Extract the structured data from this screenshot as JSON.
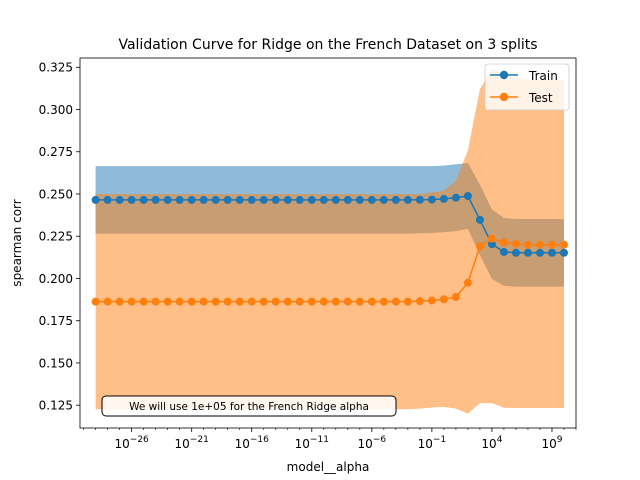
{
  "chart_data": {
    "type": "line",
    "title": "Validation Curve for Ridge on the French Dataset on 3 splits",
    "xlabel": "model__alpha",
    "ylabel": "spearman corr",
    "x_scale": "log",
    "xlim_exp": [
      -30.3,
      11.0
    ],
    "ylim": [
      0.1115,
      0.3305
    ],
    "y_ticks": [
      "0.125",
      "0.150",
      "0.175",
      "0.200",
      "0.225",
      "0.250",
      "0.275",
      "0.300",
      "0.325"
    ],
    "x_tick_exponents": [
      -26,
      -21,
      -16,
      -11,
      -6,
      -1,
      4,
      9
    ],
    "legend_position": "top-right",
    "grid": false,
    "alpha_exponents": [
      -29,
      -28,
      -27,
      -26,
      -25,
      -24,
      -23,
      -22,
      -21,
      -20,
      -19,
      -18,
      -17,
      -16,
      -15,
      -14,
      -13,
      -12,
      -11,
      -10,
      -9,
      -8,
      -7,
      -6,
      -5,
      -4,
      -3,
      -2,
      -1,
      0,
      1,
      2,
      3,
      4,
      5,
      6,
      7,
      8,
      9,
      10
    ],
    "series": [
      {
        "name": "Train",
        "color": "#1f77b4",
        "fill_color": "#1f77b4",
        "mean": [
          0.2465,
          0.2465,
          0.2465,
          0.2465,
          0.2465,
          0.2465,
          0.2465,
          0.2465,
          0.2465,
          0.2465,
          0.2465,
          0.2465,
          0.2465,
          0.2465,
          0.2465,
          0.2465,
          0.2465,
          0.2465,
          0.2465,
          0.2465,
          0.2465,
          0.2465,
          0.2465,
          0.2465,
          0.2465,
          0.2465,
          0.2465,
          0.2466,
          0.2467,
          0.2471,
          0.2478,
          0.2488,
          0.2347,
          0.2203,
          0.2157,
          0.2152,
          0.2152,
          0.2152,
          0.2152,
          0.2152
        ],
        "upper": [
          0.2665,
          0.2665,
          0.2665,
          0.2665,
          0.2665,
          0.2665,
          0.2665,
          0.2665,
          0.2665,
          0.2665,
          0.2665,
          0.2665,
          0.2665,
          0.2665,
          0.2665,
          0.2665,
          0.2665,
          0.2665,
          0.2665,
          0.2665,
          0.2665,
          0.2665,
          0.2665,
          0.2665,
          0.2665,
          0.2665,
          0.2665,
          0.2665,
          0.2665,
          0.2668,
          0.2676,
          0.2683,
          0.2556,
          0.2408,
          0.2358,
          0.2352,
          0.2352,
          0.2352,
          0.2352,
          0.2352
        ],
        "lower": [
          0.2265,
          0.2265,
          0.2265,
          0.2265,
          0.2265,
          0.2265,
          0.2265,
          0.2265,
          0.2265,
          0.2265,
          0.2265,
          0.2265,
          0.2265,
          0.2265,
          0.2265,
          0.2265,
          0.2265,
          0.2265,
          0.2265,
          0.2265,
          0.2265,
          0.2265,
          0.2265,
          0.2265,
          0.2265,
          0.2265,
          0.2265,
          0.2267,
          0.2269,
          0.2274,
          0.228,
          0.2293,
          0.2138,
          0.1998,
          0.1956,
          0.1952,
          0.1952,
          0.1952,
          0.1952,
          0.1952
        ]
      },
      {
        "name": "Test",
        "color": "#ff7f0e",
        "fill_color": "#ff7f0e",
        "mean": [
          0.1863,
          0.1863,
          0.1863,
          0.1863,
          0.1863,
          0.1863,
          0.1863,
          0.1863,
          0.1863,
          0.1863,
          0.1863,
          0.1863,
          0.1863,
          0.1863,
          0.1863,
          0.1863,
          0.1863,
          0.1863,
          0.1863,
          0.1863,
          0.1863,
          0.1863,
          0.1863,
          0.1863,
          0.1863,
          0.1863,
          0.1863,
          0.1866,
          0.187,
          0.1877,
          0.189,
          0.1975,
          0.219,
          0.2236,
          0.2215,
          0.2205,
          0.22,
          0.22,
          0.22,
          0.22
        ],
        "upper": [
          0.25,
          0.25,
          0.25,
          0.25,
          0.25,
          0.25,
          0.25,
          0.25,
          0.25,
          0.25,
          0.25,
          0.25,
          0.25,
          0.25,
          0.25,
          0.25,
          0.25,
          0.25,
          0.25,
          0.25,
          0.25,
          0.25,
          0.25,
          0.25,
          0.25,
          0.25,
          0.25,
          0.25,
          0.251,
          0.252,
          0.258,
          0.276,
          0.312,
          0.324,
          0.321,
          0.3185,
          0.3175,
          0.3175,
          0.3175,
          0.3175
        ],
        "lower": [
          0.1226,
          0.1226,
          0.1226,
          0.1226,
          0.1226,
          0.1226,
          0.1226,
          0.1226,
          0.1226,
          0.1226,
          0.1226,
          0.1226,
          0.1226,
          0.1226,
          0.1226,
          0.1226,
          0.1226,
          0.1226,
          0.1226,
          0.1226,
          0.1226,
          0.1226,
          0.1226,
          0.1226,
          0.1226,
          0.1226,
          0.1226,
          0.123,
          0.1236,
          0.124,
          0.123,
          0.12,
          0.1262,
          0.1262,
          0.1235,
          0.1233,
          0.1233,
          0.1233,
          0.1233,
          0.1233
        ]
      }
    ],
    "annotation": "We will use 1e+05 for the French Ridge alpha"
  }
}
